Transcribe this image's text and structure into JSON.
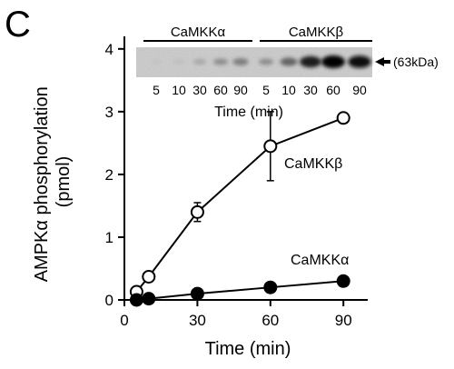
{
  "panel_label": "C",
  "chart_data": {
    "type": "line",
    "xlabel": "Time (min)",
    "ylabel": "AMPKα phosphorylation\n(pmol)",
    "xlim": [
      0,
      100
    ],
    "ylim": [
      0,
      4.2
    ],
    "xticks": [
      0,
      30,
      60,
      90
    ],
    "yticks": [
      0,
      1,
      2,
      3,
      4
    ],
    "grid": false,
    "series": [
      {
        "name": "CaMKKβ",
        "marker": "open-circle",
        "x": [
          5,
          10,
          30,
          60,
          90
        ],
        "y": [
          0.13,
          0.37,
          1.4,
          2.45,
          2.9
        ],
        "err": [
          0,
          0,
          0.15,
          0.55,
          0
        ]
      },
      {
        "name": "CaMKKα",
        "marker": "filled-circle",
        "x": [
          5,
          10,
          30,
          60,
          90
        ],
        "y": [
          0.0,
          0.02,
          0.1,
          0.2,
          0.3
        ],
        "err": [
          0,
          0,
          0,
          0,
          0
        ]
      }
    ]
  },
  "blot": {
    "groups": [
      "CaMKKα",
      "CaMKKβ"
    ],
    "lanes": [
      "5",
      "10",
      "30",
      "60",
      "90",
      "5",
      "10",
      "30",
      "60",
      "90"
    ],
    "intensities": [
      0.03,
      0.06,
      0.18,
      0.3,
      0.38,
      0.3,
      0.5,
      0.85,
      1.0,
      0.95
    ],
    "time_label": "Time (min)",
    "mw_label": "(63kDa)",
    "arrow_icon": "left-arrow-icon"
  }
}
